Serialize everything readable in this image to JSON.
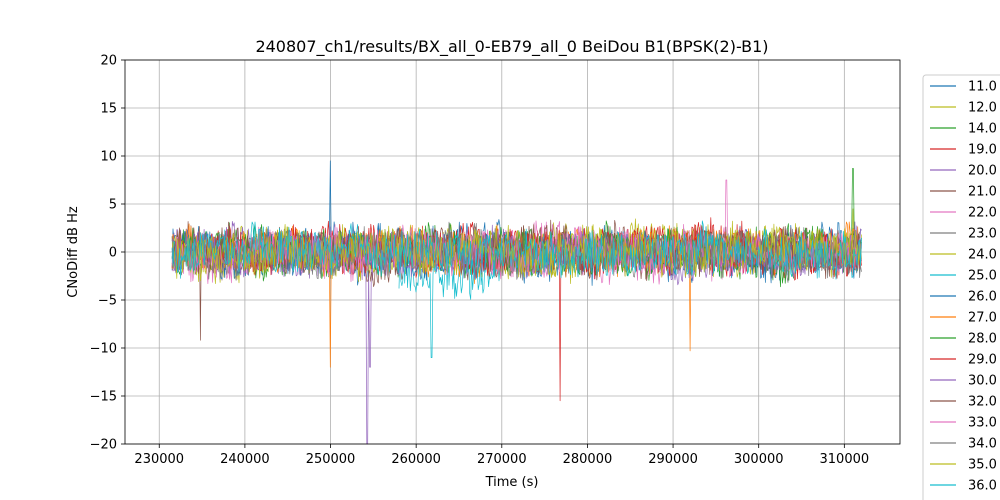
{
  "chart_data": {
    "type": "line",
    "title": "240807_ch1/results/BX_all_0-EB79_all_0 BeiDou B1(BPSK(2)-B1)",
    "xlabel": "Time (s)",
    "ylabel": "CNoDiff dB Hz",
    "xlim": [
      226000,
      316500
    ],
    "ylim": [
      -20,
      20
    ],
    "x_ticks": [
      230000,
      240000,
      250000,
      260000,
      270000,
      280000,
      290000,
      300000,
      310000
    ],
    "y_ticks": [
      -20,
      -15,
      -10,
      -5,
      0,
      5,
      10,
      15,
      20
    ],
    "x_tick_labels": [
      "230000",
      "240000",
      "250000",
      "260000",
      "270000",
      "280000",
      "290000",
      "300000",
      "310000"
    ],
    "y_tick_labels": [
      "−20",
      "−15",
      "−10",
      "−5",
      "0",
      "5",
      "10",
      "15",
      "20"
    ],
    "grid": true,
    "legend_position": "right, outside plot (clipped at bottom)",
    "series": [
      {
        "name": "11.0",
        "color": "#1f77b4",
        "x_range": [
          231500,
          312000
        ],
        "base": 0.0,
        "amp": 2.2,
        "spikes": [
          [
            250000,
            9.5
          ]
        ]
      },
      {
        "name": "12.0",
        "color": "#bcbd22",
        "x_range": [
          231500,
          312000
        ],
        "base": 0.2,
        "amp": 2.0,
        "spikes": [
          [
            311000,
            4.5
          ]
        ]
      },
      {
        "name": "14.0",
        "color": "#2ca02c",
        "x_range": [
          235000,
          311500
        ],
        "base": 0.3,
        "amp": 1.8,
        "spikes": [
          [
            311000,
            8.7
          ]
        ]
      },
      {
        "name": "19.0",
        "color": "#d62728",
        "x_range": [
          236000,
          312000
        ],
        "base": 0.5,
        "amp": 2.0,
        "spikes": [
          [
            276800,
            -15.5
          ]
        ]
      },
      {
        "name": "20.0",
        "color": "#9467bd",
        "x_range": [
          231500,
          255000
        ],
        "base": 0.0,
        "amp": 2.2,
        "spikes": [
          [
            254300,
            -20.0
          ],
          [
            254600,
            -12.0
          ]
        ]
      },
      {
        "name": "21.0",
        "color": "#8c564b",
        "x_range": [
          231500,
          312000
        ],
        "base": 0.0,
        "amp": 2.2,
        "spikes": [
          [
            234800,
            -9.2
          ]
        ]
      },
      {
        "name": "22.0",
        "color": "#e377c2",
        "x_range": [
          268500,
          296500
        ],
        "base": 0.0,
        "amp": 2.5,
        "spikes": [
          [
            296200,
            7.5
          ]
        ]
      },
      {
        "name": "23.0",
        "color": "#7f7f7f",
        "x_range": [
          296000,
          312000
        ],
        "base": 0.0,
        "amp": 2.0,
        "spikes": []
      },
      {
        "name": "24.0",
        "color": "#bcbd22",
        "x_range": [
          231500,
          312000
        ],
        "base": 0.0,
        "amp": 2.0,
        "spikes": []
      },
      {
        "name": "25.0",
        "color": "#17becf",
        "x_range": [
          258000,
          270000
        ],
        "base": -1.5,
        "amp": 2.5,
        "spikes": [
          [
            261800,
            -11.0
          ]
        ]
      },
      {
        "name": "26.0",
        "color": "#1f77b4",
        "x_range": [
          231500,
          312000
        ],
        "base": 0.0,
        "amp": 2.0,
        "spikes": []
      },
      {
        "name": "27.0",
        "color": "#ff7f0e",
        "x_range": [
          231500,
          312000
        ],
        "base": 0.0,
        "amp": 2.0,
        "spikes": [
          [
            250000,
            -12.0
          ],
          [
            292000,
            -10.3
          ]
        ]
      },
      {
        "name": "28.0",
        "color": "#2ca02c",
        "x_range": [
          231500,
          312000
        ],
        "base": 0.0,
        "amp": 2.0,
        "spikes": []
      },
      {
        "name": "29.0",
        "color": "#d62728",
        "x_range": [
          231500,
          312000
        ],
        "base": 0.0,
        "amp": 2.0,
        "spikes": []
      },
      {
        "name": "30.0",
        "color": "#9467bd",
        "x_range": [
          231500,
          312000
        ],
        "base": 0.0,
        "amp": 2.0,
        "spikes": []
      },
      {
        "name": "32.0",
        "color": "#8c564b",
        "x_range": [
          231500,
          312000
        ],
        "base": 0.0,
        "amp": 2.0,
        "spikes": []
      },
      {
        "name": "33.0",
        "color": "#e377c2",
        "x_range": [
          231500,
          312000
        ],
        "base": 0.0,
        "amp": 2.0,
        "spikes": []
      },
      {
        "name": "34.0",
        "color": "#7f7f7f",
        "x_range": [
          231500,
          312000
        ],
        "base": 0.0,
        "amp": 2.0,
        "spikes": []
      },
      {
        "name": "35.0",
        "color": "#bcbd22",
        "x_range": [
          231500,
          312000
        ],
        "base": 0.0,
        "amp": 2.0,
        "spikes": []
      },
      {
        "name": "36.0",
        "color": "#17becf",
        "x_range": [
          231500,
          312000
        ],
        "base": 0.0,
        "amp": 2.0,
        "spikes": []
      }
    ]
  }
}
